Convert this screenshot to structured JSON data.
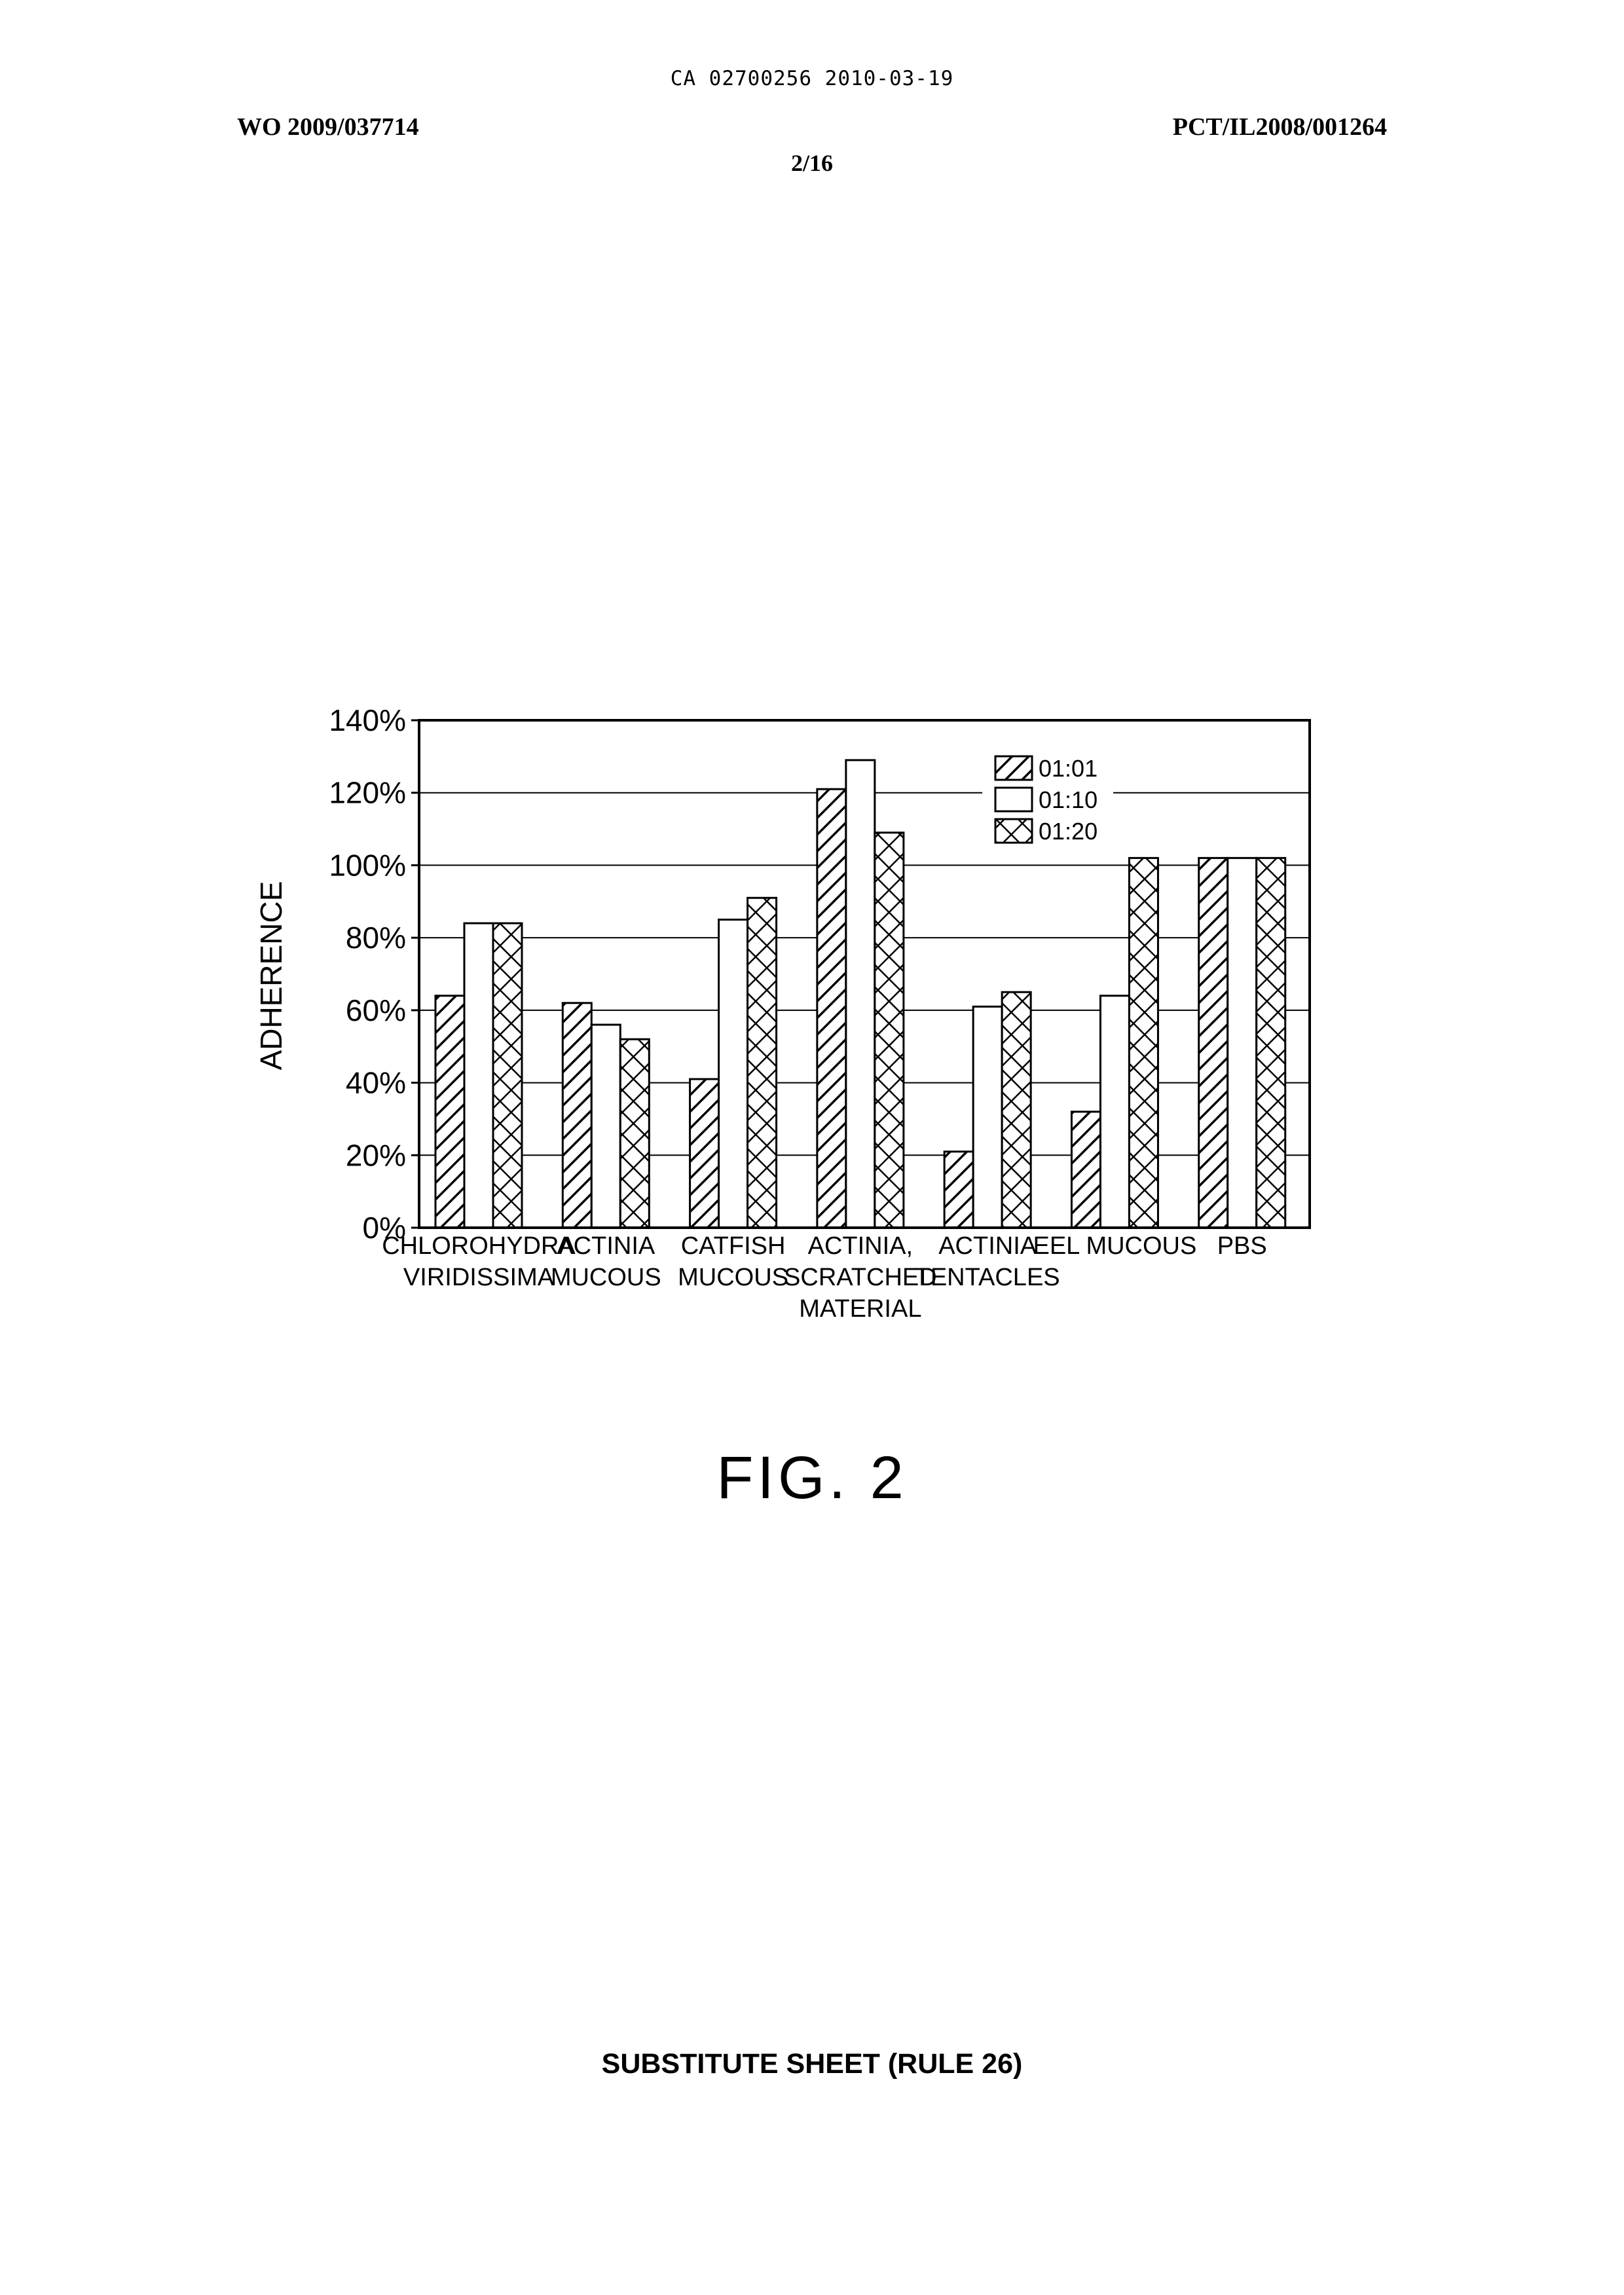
{
  "header": {
    "ca_line": "CA 02700256 2010-03-19",
    "wo_number": "WO 2009/037714",
    "pct_number": "PCT/IL2008/001264",
    "sheet": "2/16"
  },
  "figure_label": "FIG. 2",
  "footer": "SUBSTITUTE SHEET (RULE 26)",
  "chart_data": {
    "type": "bar",
    "title": "",
    "xlabel": "",
    "ylabel": "ADHERENCE",
    "ylim": [
      0,
      140
    ],
    "y_ticks": [
      "0%",
      "20%",
      "40%",
      "60%",
      "80%",
      "100%",
      "120%",
      "140%"
    ],
    "grid": true,
    "legend_position": "top-right",
    "categories": [
      [
        "CHLOROHYDRA",
        "VIRIDISSIMA"
      ],
      [
        "ACTINIA",
        "MUCOUS"
      ],
      [
        "CATFISH",
        "MUCOUS"
      ],
      [
        "ACTINIA,",
        "SCRATCHED",
        "MATERIAL"
      ],
      [
        "ACTINIA",
        "TENTACLES"
      ],
      [
        "EEL  MUCOUS"
      ],
      [
        "PBS"
      ]
    ],
    "series": [
      {
        "name": "01:01",
        "pattern": "hatch",
        "values": [
          64,
          62,
          41,
          121,
          21,
          32,
          102
        ]
      },
      {
        "name": "01:10",
        "pattern": "empty",
        "values": [
          84,
          56,
          85,
          129,
          61,
          64,
          102
        ]
      },
      {
        "name": "01:20",
        "pattern": "cross",
        "values": [
          84,
          52,
          91,
          109,
          65,
          102,
          102
        ]
      }
    ]
  }
}
